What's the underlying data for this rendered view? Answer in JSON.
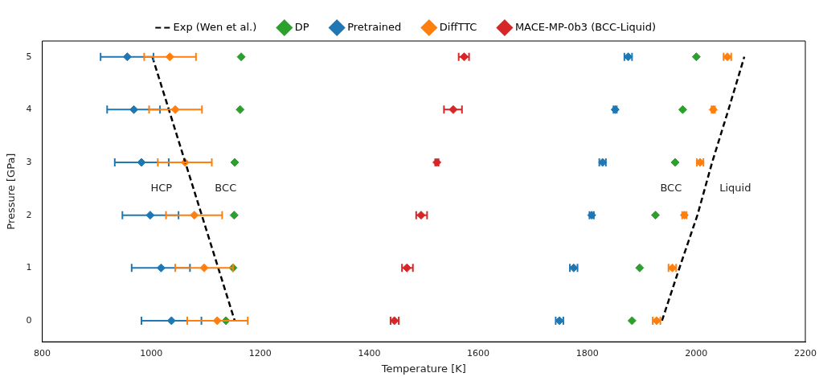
{
  "chart_data": {
    "type": "scatter",
    "xlabel": "Temperature [K]",
    "ylabel": "Pressure [GPa]",
    "xlim": [
      800,
      2200
    ],
    "xticks": [
      800,
      1000,
      1200,
      1400,
      1600,
      1800,
      2000,
      2200
    ],
    "ylim": [
      -0.4,
      5.3
    ],
    "yticks": [
      0,
      1,
      2,
      3,
      4,
      5
    ],
    "grid": false,
    "legend": "top",
    "marker": "diamond",
    "series": [
      {
        "name": "Exp (Wen et al.)",
        "type": "line",
        "line_style": "dashed",
        "marker": "none",
        "color": "#000000",
        "x": [
          1002,
          1153,
          null,
          1937,
          1969,
          2002,
          2029,
          2059,
          2088
        ],
        "values": [
          5,
          0,
          null,
          0,
          1,
          2,
          3,
          4,
          5
        ]
      },
      {
        "name": "DP",
        "color": "#2ca02c",
        "x": [
          1165,
          1163,
          1153,
          1152,
          1150,
          1137,
          2000,
          1975,
          1961,
          1925,
          1896,
          1882
        ],
        "values": [
          5,
          4,
          3,
          2,
          1,
          0,
          5,
          4,
          3,
          2,
          1,
          0
        ]
      },
      {
        "name": "Pretrained",
        "color": "#1f77b4",
        "x": [
          956,
          968,
          982,
          998,
          1018,
          1037,
          1875,
          1851,
          1828,
          1808,
          1775,
          1749
        ],
        "values": [
          5,
          4,
          3,
          2,
          1,
          0,
          5,
          4,
          3,
          2,
          1,
          0
        ],
        "xerrors": [
          [
            907,
            1004
          ],
          [
            919,
            1016
          ],
          [
            933,
            1032
          ],
          [
            947,
            1050
          ],
          [
            964,
            1071
          ],
          [
            982,
            1092
          ],
          [
            1868,
            1882
          ],
          [
            1848,
            1854
          ],
          [
            1822,
            1834
          ],
          [
            1804,
            1812
          ],
          [
            1768,
            1782
          ],
          [
            1742,
            1756
          ]
        ]
      },
      {
        "name": "DiffTTC",
        "color": "#ff7f0e",
        "x": [
          1034,
          1044,
          1062,
          1079,
          1097,
          1121,
          2057,
          2031,
          2007,
          1978,
          1956,
          1927
        ],
        "values": [
          5,
          4,
          3,
          2,
          1,
          0,
          5,
          4,
          3,
          2,
          1,
          0
        ],
        "xerrors": [
          [
            987,
            1082
          ],
          [
            996,
            1093
          ],
          [
            1012,
            1111
          ],
          [
            1027,
            1130
          ],
          [
            1044,
            1150
          ],
          [
            1066,
            1177
          ],
          [
            2050,
            2064
          ],
          [
            2028,
            2034
          ],
          [
            2001,
            2013
          ],
          [
            1974,
            1982
          ],
          [
            1949,
            1963
          ],
          [
            1920,
            1934
          ]
        ]
      },
      {
        "name": "MACE-MP-0b3 (BCC-Liquid)",
        "color": "#d62728",
        "x": [
          1574,
          1554,
          1524,
          1495,
          1469,
          1446
        ],
        "values": [
          5,
          4,
          3,
          2,
          1,
          0
        ],
        "xerrors": [
          [
            1564,
            1583
          ],
          [
            1537,
            1570
          ],
          [
            1521,
            1527
          ],
          [
            1486,
            1506
          ],
          [
            1460,
            1480
          ],
          [
            1439,
            1454
          ]
        ]
      }
    ],
    "annotations": [
      "HCP",
      "BCC",
      "BCC",
      "Liquid"
    ]
  }
}
